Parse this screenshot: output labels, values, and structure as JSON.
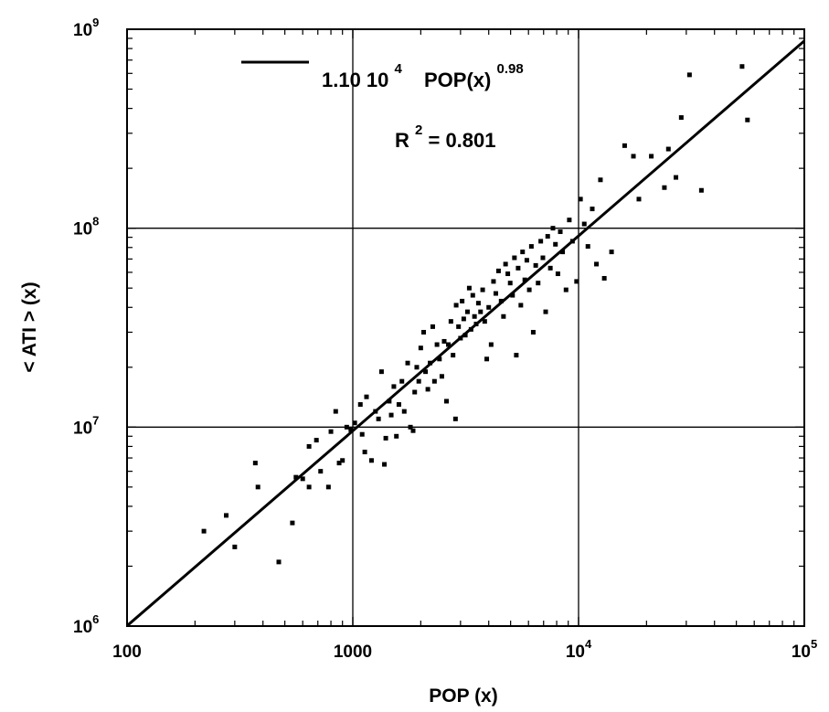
{
  "chart_data": {
    "type": "scatter",
    "xlabel": "POP (x)",
    "ylabel": "< ATI > (x)",
    "xscale": "log",
    "yscale": "log",
    "xlim": [
      100,
      100000
    ],
    "ylim": [
      1000000,
      1000000000
    ],
    "grid": "major",
    "x_ticks": [
      {
        "value": 100,
        "base": "100",
        "exp": ""
      },
      {
        "value": 1000,
        "base": "1000",
        "exp": ""
      },
      {
        "value": 10000,
        "base": "10",
        "exp": "4"
      },
      {
        "value": 100000,
        "base": "10",
        "exp": "5"
      }
    ],
    "y_ticks": [
      {
        "value": 1000000,
        "base": "10",
        "exp": "6"
      },
      {
        "value": 10000000,
        "base": "10",
        "exp": "7"
      },
      {
        "value": 100000000,
        "base": "10",
        "exp": "8"
      },
      {
        "value": 1000000000,
        "base": "10",
        "exp": "9"
      }
    ],
    "legend": {
      "position": "top-left",
      "fit_prefix": "1.10 10",
      "fit_prefix_exp": "4",
      "fit_var": "POP(x)",
      "fit_var_exp": "0.98",
      "r2_prefix": "R",
      "r2_exp": "2",
      "r2_value": "= 0.801"
    },
    "fit": {
      "coefficient": 11000,
      "exponent": 0.98
    },
    "points": [
      [
        219,
        3000000.0
      ],
      [
        275,
        3600000.0
      ],
      [
        300,
        2500000.0
      ],
      [
        370,
        6600000.0
      ],
      [
        380,
        5000000.0
      ],
      [
        470,
        2100000.0
      ],
      [
        540,
        3300000.0
      ],
      [
        560,
        5600000.0
      ],
      [
        600,
        5500000.0
      ],
      [
        640,
        5000000.0
      ],
      [
        640,
        8000000.0
      ],
      [
        690,
        8600000.0
      ],
      [
        720,
        6000000.0
      ],
      [
        780,
        5000000.0
      ],
      [
        800,
        9500000.0
      ],
      [
        840,
        12000000.0
      ],
      [
        870,
        6600000.0
      ],
      [
        900,
        6800000.0
      ],
      [
        940,
        10000000.0
      ],
      [
        980,
        9700000.0
      ],
      [
        1020,
        10500000.0
      ],
      [
        1080,
        13000000.0
      ],
      [
        1100,
        9200000.0
      ],
      [
        1130,
        7500000.0
      ],
      [
        1150,
        14200000.0
      ],
      [
        1210,
        6800000.0
      ],
      [
        1260,
        12000000.0
      ],
      [
        1300,
        11000000.0
      ],
      [
        1340,
        19000000.0
      ],
      [
        1380,
        6500000.0
      ],
      [
        1400,
        8800000.0
      ],
      [
        1450,
        13500000.0
      ],
      [
        1480,
        11500000.0
      ],
      [
        1520,
        16000000.0
      ],
      [
        1560,
        9000000.0
      ],
      [
        1600,
        13000000.0
      ],
      [
        1650,
        17000000.0
      ],
      [
        1690,
        12000000.0
      ],
      [
        1750,
        21000000.0
      ],
      [
        1800,
        10000000.0
      ],
      [
        1850,
        9600000.0
      ],
      [
        1880,
        15000000.0
      ],
      [
        1920,
        20000000.0
      ],
      [
        1960,
        17000000.0
      ],
      [
        2000,
        25000000.0
      ],
      [
        2060,
        30000000.0
      ],
      [
        2100,
        19000000.0
      ],
      [
        2150,
        15500000.0
      ],
      [
        2200,
        21000000.0
      ],
      [
        2260,
        32000000.0
      ],
      [
        2300,
        17000000.0
      ],
      [
        2360,
        26000000.0
      ],
      [
        2420,
        22000000.0
      ],
      [
        2480,
        18000000.0
      ],
      [
        2540,
        27000000.0
      ],
      [
        2600,
        13500000.0
      ],
      [
        2650,
        26000000.0
      ],
      [
        2720,
        34000000.0
      ],
      [
        2780,
        23000000.0
      ],
      [
        2850,
        11000000.0
      ],
      [
        2870,
        41000000.0
      ],
      [
        2940,
        32000000.0
      ],
      [
        3000,
        28000000.0
      ],
      [
        3050,
        43000000.0
      ],
      [
        3100,
        35000000.0
      ],
      [
        3150,
        29000000.0
      ],
      [
        3220,
        38000000.0
      ],
      [
        3280,
        50000000.0
      ],
      [
        3340,
        31000000.0
      ],
      [
        3400,
        46000000.0
      ],
      [
        3460,
        36000000.0
      ],
      [
        3520,
        33000000.0
      ],
      [
        3600,
        42000000.0
      ],
      [
        3680,
        38000000.0
      ],
      [
        3760,
        49000000.0
      ],
      [
        3840,
        34000000.0
      ],
      [
        3920,
        22000000.0
      ],
      [
        4000,
        40000000.0
      ],
      [
        4100,
        26000000.0
      ],
      [
        4200,
        54000000.0
      ],
      [
        4300,
        47000000.0
      ],
      [
        4420,
        61000000.0
      ],
      [
        4540,
        43000000.0
      ],
      [
        4650,
        36000000.0
      ],
      [
        4750,
        66000000.0
      ],
      [
        4860,
        59000000.0
      ],
      [
        4980,
        53000000.0
      ],
      [
        5100,
        46000000.0
      ],
      [
        5200,
        71000000.0
      ],
      [
        5300,
        23000000.0
      ],
      [
        5400,
        63000000.0
      ],
      [
        5550,
        41000000.0
      ],
      [
        5650,
        76000000.0
      ],
      [
        5780,
        55000000.0
      ],
      [
        5900,
        69000000.0
      ],
      [
        6050,
        49000000.0
      ],
      [
        6180,
        81000000.0
      ],
      [
        6300,
        30000000.0
      ],
      [
        6460,
        65000000.0
      ],
      [
        6620,
        53000000.0
      ],
      [
        6800,
        86000000.0
      ],
      [
        6950,
        71000000.0
      ],
      [
        7150,
        38000000.0
      ],
      [
        7300,
        91000000.0
      ],
      [
        7500,
        63000000.0
      ],
      [
        7700,
        100000000.0
      ],
      [
        7900,
        83000000.0
      ],
      [
        8100,
        59000000.0
      ],
      [
        8300,
        96000000.0
      ],
      [
        8500,
        76000000.0
      ],
      [
        8800,
        49000000.0
      ],
      [
        9100,
        110000000.0
      ],
      [
        9400,
        86000000.0
      ],
      [
        9800,
        54000000.0
      ],
      [
        10200,
        140000000.0
      ],
      [
        10600,
        105000000.0
      ],
      [
        11000,
        81000000.0
      ],
      [
        11500,
        125000000.0
      ],
      [
        12000,
        66000000.0
      ],
      [
        12500,
        175000000.0
      ],
      [
        13000,
        56000000.0
      ],
      [
        14000,
        76000000.0
      ],
      [
        16000,
        260000000.0
      ],
      [
        17500,
        230000000.0
      ],
      [
        18500,
        140000000.0
      ],
      [
        21000,
        230000000.0
      ],
      [
        24000,
        160000000.0
      ],
      [
        25000,
        250000000.0
      ],
      [
        27000,
        180000000.0
      ],
      [
        28500,
        360000000.0
      ],
      [
        31000,
        590000000.0
      ],
      [
        35000,
        155000000.0
      ],
      [
        53000,
        650000000.0
      ],
      [
        56000,
        350000000.0
      ]
    ]
  }
}
